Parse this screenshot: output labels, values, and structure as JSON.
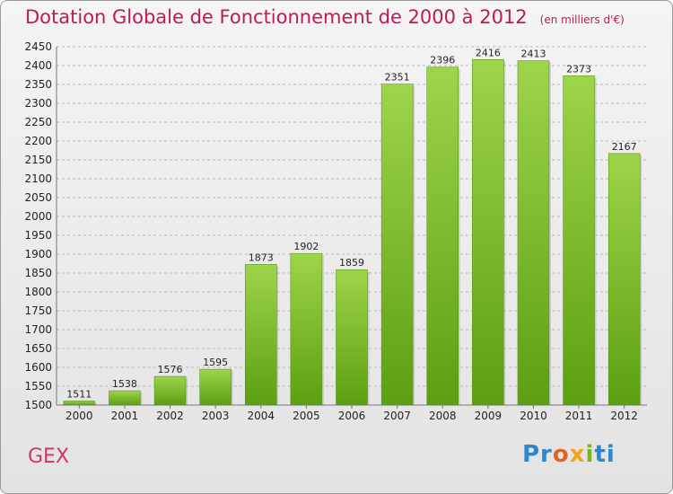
{
  "title": "Dotation Globale de Fonctionnement de 2000 à 2012",
  "unit": "(en milliers d'€)",
  "commune": "GEX",
  "brand": [
    "Pr",
    "o",
    "x",
    "i",
    "ti"
  ],
  "colors": {
    "bar_top": "#9ed44a",
    "bar_bottom": "#5c9f12",
    "title": "#c2185b",
    "grid": "#b8b8b8"
  },
  "chart_data": {
    "type": "bar",
    "title": "Dotation Globale de Fonctionnement de 2000 à 2012",
    "xlabel": "",
    "ylabel": "",
    "categories": [
      "2000",
      "2001",
      "2002",
      "2003",
      "2004",
      "2005",
      "2006",
      "2007",
      "2008",
      "2009",
      "2010",
      "2011",
      "2012"
    ],
    "values": [
      1511,
      1538,
      1576,
      1595,
      1873,
      1902,
      1859,
      2351,
      2396,
      2416,
      2413,
      2373,
      2167
    ],
    "ylim": [
      1500,
      2450
    ],
    "yticks": [
      1500,
      1550,
      1600,
      1650,
      1700,
      1750,
      1800,
      1850,
      1900,
      1950,
      2000,
      2050,
      2100,
      2150,
      2200,
      2250,
      2300,
      2350,
      2400,
      2450
    ],
    "grid": true
  }
}
